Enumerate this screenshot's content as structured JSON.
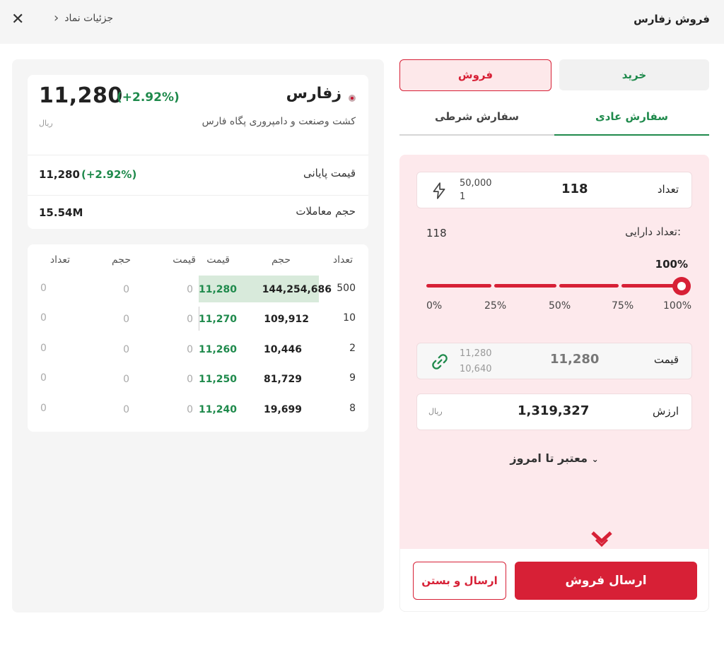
{
  "header": {
    "title": "فروش زفارس",
    "details_label": "جزئیات نماد",
    "close_icon": "close-icon",
    "chevron_icon": "chevron-left-icon"
  },
  "symbol": {
    "name": "زفارس",
    "description": "کشت وصنعت و دامپروری پگاه فارس",
    "last_price": "11,280",
    "change": "(+2.92%)",
    "currency": "ریال",
    "final_price_label": "قیمت پایانی",
    "final_price": "11,280",
    "final_change": "(+2.92%)",
    "volume_label": "حجم معاملات",
    "volume": "15.54M"
  },
  "order_book": {
    "headers": {
      "count_buy": "تعداد",
      "volume_buy": "حجم",
      "price_buy": "قیمت",
      "price_sell": "قیمت",
      "volume_sell": "حجم",
      "count_sell": "تعداد"
    },
    "rows": [
      {
        "count_buy": "500",
        "volume_buy": "144,254,686",
        "price_buy": "11,280",
        "price_sell": "0",
        "volume_sell": "0",
        "count_sell": "0"
      },
      {
        "count_buy": "10",
        "volume_buy": "109,912",
        "price_buy": "11,270",
        "price_sell": "0",
        "volume_sell": "0",
        "count_sell": "0"
      },
      {
        "count_buy": "2",
        "volume_buy": "10,446",
        "price_buy": "11,260",
        "price_sell": "0",
        "volume_sell": "0",
        "count_sell": "0"
      },
      {
        "count_buy": "9",
        "volume_buy": "81,729",
        "price_buy": "11,250",
        "price_sell": "0",
        "volume_sell": "0",
        "count_sell": "0"
      },
      {
        "count_buy": "8",
        "volume_buy": "19,699",
        "price_buy": "11,240",
        "price_sell": "0",
        "volume_sell": "0",
        "count_sell": "0"
      }
    ]
  },
  "side_tabs": {
    "buy": "خرید",
    "sell": "فروش",
    "active": "sell"
  },
  "order_tabs": {
    "normal": "سفارش عادی",
    "conditional": "سفارش شرطی",
    "active": "normal"
  },
  "form": {
    "quantity_label": "تعداد",
    "quantity_value": "118",
    "quantity_max": "50,000",
    "quantity_min": "1",
    "holdings_label": "تعداد دارایی:",
    "holdings_value": "118",
    "percent_value": "100%",
    "percent_fill": 1.0,
    "slider_ticks": [
      "0%",
      "25%",
      "50%",
      "75%",
      "100%"
    ],
    "price_label": "قیمت",
    "price_value": "11,280",
    "price_upper": "11,280",
    "price_lower": "10,640",
    "value_label": "ارزش",
    "value_amount": "1,319,327",
    "value_unit": "ریال",
    "validity_label": "معتبر تا امروز"
  },
  "actions": {
    "send_sell": "ارسال فروش",
    "send_and_close": "ارسال و بستن"
  },
  "colors": {
    "accent_red": "#d72036",
    "accent_green": "#1f8a4c",
    "sell_bg": "#fde9ec"
  }
}
